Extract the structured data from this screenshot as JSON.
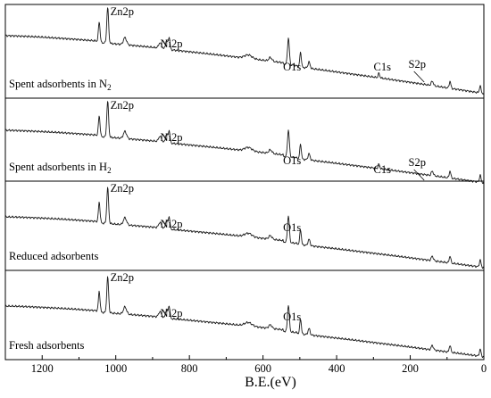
{
  "chart_data": {
    "type": "line",
    "xlabel": "B.E.(eV)",
    "ylabel": "",
    "xlim": [
      1300,
      0
    ],
    "x_reversed": true,
    "x_ticks": [
      1200,
      1000,
      800,
      600,
      400,
      200,
      0
    ],
    "legend": "none",
    "grid": false,
    "panels": [
      {
        "sample_label_main": "Spent adsorbents in N",
        "sample_label_sub": "2",
        "peaks": [
          {
            "name": "Zn2p",
            "be": 1022
          },
          {
            "name": "Ni2p",
            "be": 855
          },
          {
            "name": "O1s",
            "be": 531
          },
          {
            "name": "C1s",
            "be": 285
          },
          {
            "name": "S2p",
            "be": 162
          }
        ]
      },
      {
        "sample_label_main": "Spent adsorbents in H",
        "sample_label_sub": "2",
        "peaks": [
          {
            "name": "Zn2p",
            "be": 1022
          },
          {
            "name": "Ni2p",
            "be": 855
          },
          {
            "name": "O1s",
            "be": 531
          },
          {
            "name": "C1s",
            "be": 285
          },
          {
            "name": "S2p",
            "be": 162
          }
        ]
      },
      {
        "sample_label_main": "Reduced adsorbents",
        "sample_label_sub": "",
        "peaks": [
          {
            "name": "Zn2p",
            "be": 1022
          },
          {
            "name": "Ni2p",
            "be": 855
          },
          {
            "name": "O1s",
            "be": 531
          }
        ]
      },
      {
        "sample_label_main": "Fresh adsorbents",
        "sample_label_sub": "",
        "peaks": [
          {
            "name": "Zn2p",
            "be": 1022
          },
          {
            "name": "Ni2p",
            "be": 855
          },
          {
            "name": "O1s",
            "be": 531
          }
        ]
      }
    ]
  }
}
